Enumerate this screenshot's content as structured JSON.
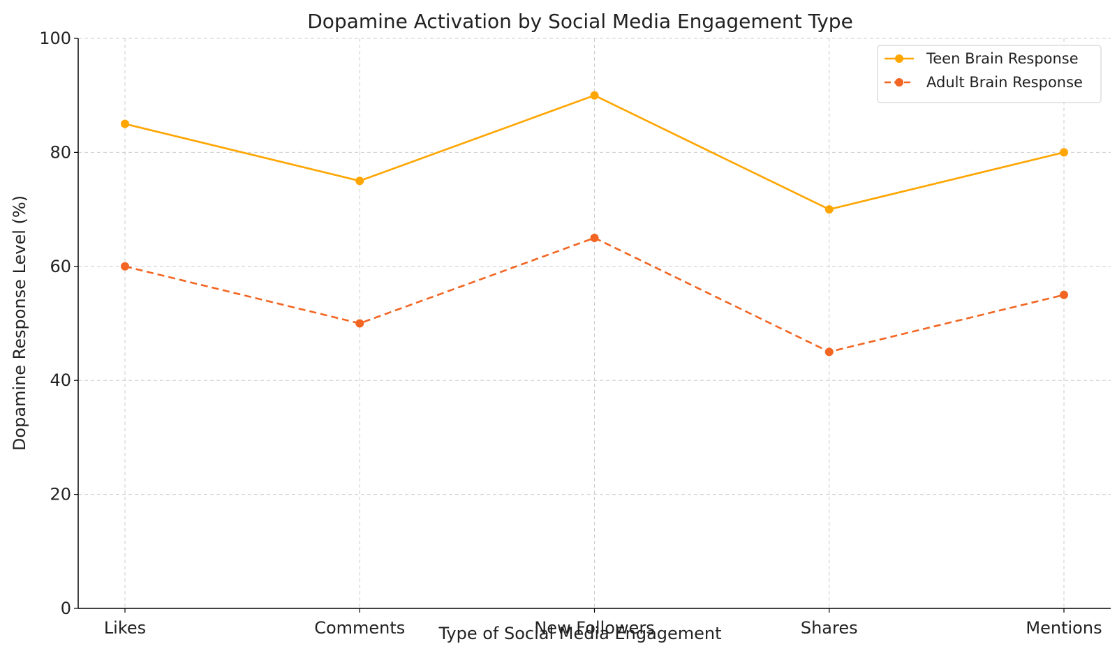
{
  "chart_data": {
    "type": "line",
    "title": "Dopamine Activation by Social Media Engagement Type",
    "xlabel": "Type of Social Media Engagement",
    "ylabel": "Dopamine Response Level (%)",
    "categories": [
      "Likes",
      "Comments",
      "New Followers",
      "Shares",
      "Mentions"
    ],
    "ylim": [
      0,
      100
    ],
    "yticks": [
      0,
      20,
      40,
      60,
      80,
      100
    ],
    "grid": true,
    "legend_position": "top-right",
    "series": [
      {
        "name": "Teen Brain Response",
        "values": [
          85,
          75,
          90,
          70,
          80
        ],
        "color": "#FFA500",
        "line_style": "solid",
        "marker": "circle"
      },
      {
        "name": "Adult Brain Response",
        "values": [
          60,
          50,
          65,
          45,
          55
        ],
        "color": "#F26522",
        "line_style": "dashed",
        "marker": "circle"
      }
    ]
  }
}
